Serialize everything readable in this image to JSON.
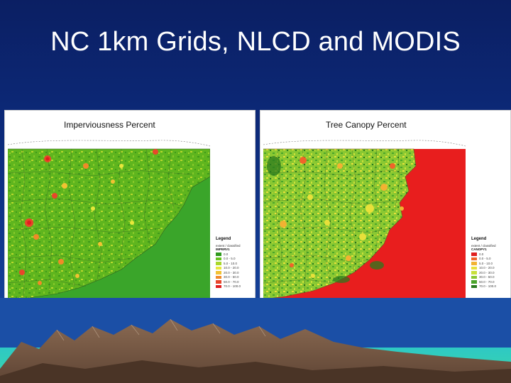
{
  "slide": {
    "title": "NC 1km Grids, NLCD and MODIS",
    "background_colors": [
      "#0b1f63",
      "#1b4fa6"
    ]
  },
  "panels": [
    {
      "title": "Imperviousness Percent",
      "legend": {
        "title": "Legend",
        "subtitle": "extent / classified",
        "field": "IMPERV1",
        "items": [
          {
            "label": "0.0",
            "color": "#2f9a1e"
          },
          {
            "label": "0.0 - 5.0",
            "color": "#66c21e"
          },
          {
            "label": "5.0 - 10.0",
            "color": "#a8d82a"
          },
          {
            "label": "10.0 - 20.0",
            "color": "#e8e83a"
          },
          {
            "label": "20.0 - 30.0",
            "color": "#f2c232"
          },
          {
            "label": "30.0 - 50.0",
            "color": "#f08a28"
          },
          {
            "label": "50.0 - 70.0",
            "color": "#e8462a"
          },
          {
            "label": "70.0 - 100.0",
            "color": "#e01e1e"
          }
        ]
      }
    },
    {
      "title": "Tree Canopy Percent",
      "legend": {
        "title": "Legend",
        "subtitle": "extent / classified",
        "field": "CANOPY1",
        "items": [
          {
            "label": "0.0",
            "color": "#e01e1e"
          },
          {
            "label": "0.0 - 5.0",
            "color": "#f0642a"
          },
          {
            "label": "5.0 - 10.0",
            "color": "#f2b232"
          },
          {
            "label": "10.0 - 20.0",
            "color": "#e8e03a"
          },
          {
            "label": "20.0 - 30.0",
            "color": "#c8e03a"
          },
          {
            "label": "30.0 - 50.0",
            "color": "#8ac832"
          },
          {
            "label": "50.0 - 70.0",
            "color": "#4aa52a"
          },
          {
            "label": "70.0 - 100.0",
            "color": "#2a7a1e"
          }
        ]
      }
    }
  ]
}
